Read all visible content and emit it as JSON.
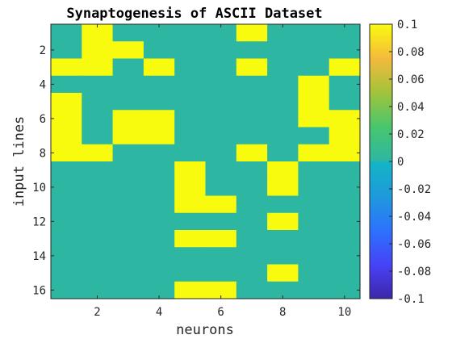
{
  "chart_data": {
    "type": "heatmap",
    "title": "Synaptogenesis of ASCII Dataset",
    "xlabel": "neurons",
    "ylabel": "input lines",
    "x_ticks": [
      2,
      4,
      6,
      8,
      10
    ],
    "y_ticks": [
      2,
      4,
      6,
      8,
      10,
      12,
      14,
      16
    ],
    "colorbar": {
      "ticks": [
        0.1,
        0.08,
        0.06,
        0.04,
        0.02,
        0,
        -0.02,
        -0.04,
        -0.06,
        -0.08,
        -0.1
      ],
      "range": [
        -0.1,
        0.1
      ],
      "colormap": "parula"
    },
    "x_range": [
      1,
      10
    ],
    "y_range": [
      1,
      16
    ],
    "values": [
      [
        0,
        0.1,
        0,
        0,
        0,
        0,
        0.1,
        0,
        0,
        0
      ],
      [
        0,
        0.1,
        0.1,
        0,
        0,
        0,
        0,
        0,
        0,
        0
      ],
      [
        0.1,
        0.1,
        0,
        0.1,
        0,
        0,
        0.1,
        0,
        0,
        0.1
      ],
      [
        0,
        0,
        0,
        0,
        0,
        0,
        0,
        0,
        0.1,
        0
      ],
      [
        0.1,
        0,
        0,
        0,
        0,
        0,
        0,
        0,
        0.1,
        0
      ],
      [
        0.1,
        0,
        0.1,
        0.1,
        0,
        0,
        0,
        0,
        0.1,
        0.1
      ],
      [
        0.1,
        0,
        0.1,
        0.1,
        0,
        0,
        0,
        0,
        0,
        0.1
      ],
      [
        0.1,
        0.1,
        0,
        0,
        0,
        0,
        0.1,
        0,
        0.1,
        0.1
      ],
      [
        0,
        0,
        0,
        0,
        0.1,
        0,
        0,
        0.1,
        0,
        0
      ],
      [
        0,
        0,
        0,
        0,
        0.1,
        0,
        0,
        0.1,
        0,
        0
      ],
      [
        0,
        0,
        0,
        0,
        0.1,
        0.1,
        0,
        0,
        0,
        0
      ],
      [
        0,
        0,
        0,
        0,
        0,
        0,
        0,
        0.1,
        0,
        0
      ],
      [
        0,
        0,
        0,
        0,
        0.1,
        0.1,
        0,
        0,
        0,
        0
      ],
      [
        0,
        0,
        0,
        0,
        0,
        0,
        0,
        0,
        0,
        0
      ],
      [
        0,
        0,
        0,
        0,
        0,
        0,
        0,
        0.1,
        0,
        0
      ],
      [
        0,
        0,
        0,
        0,
        0.1,
        0.1,
        0,
        0,
        0,
        0
      ]
    ],
    "colors": {
      "high": "#F9FB0E",
      "zero": "#2DB7A3",
      "low": "#3E26A8"
    },
    "grid": false
  }
}
